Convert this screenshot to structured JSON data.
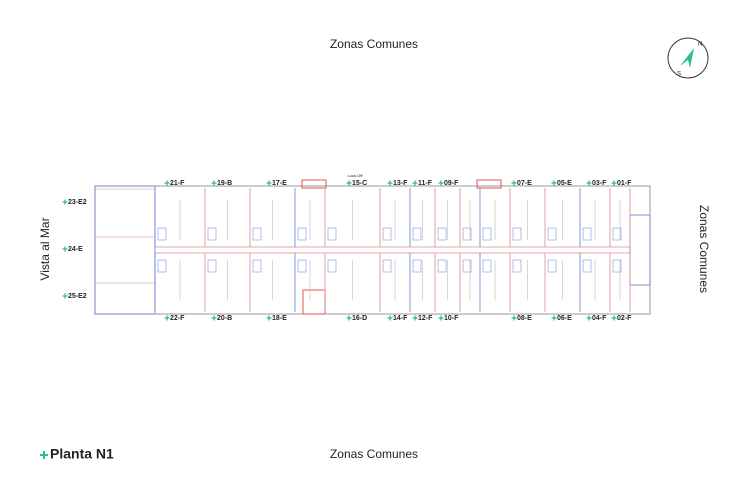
{
  "title": "Planta N1",
  "zones": {
    "top": "Zonas Comunes",
    "bottom": "Zonas Comunes",
    "right": "Zonas Comunes",
    "left": "Vista al Mar"
  },
  "compass": {
    "north": "N",
    "south": "S"
  },
  "lock_off": "Lock-Off",
  "units_top": [
    "21-F",
    "19-B",
    "17-E",
    "15-C",
    "13-F",
    "11-F",
    "09-F",
    "07-E",
    "05-E",
    "03-F",
    "01-F"
  ],
  "units_bottom": [
    "22-F",
    "20-B",
    "18-E",
    "16-D",
    "14-F",
    "12-F",
    "10-F",
    "08-E",
    "06-E",
    "04-F",
    "02-F"
  ],
  "units_left": [
    "23-E2",
    "24-E",
    "25-E2"
  ]
}
